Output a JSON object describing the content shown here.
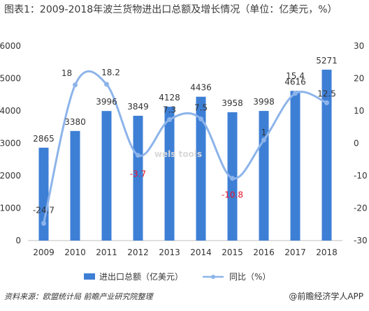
{
  "title": "图表1：2009-2018年波兰货物进出口总额及增长情况（单位：亿美元，%）",
  "footer": {
    "source": "资料来源：欧盟统计局 前瞻产业研究院整理",
    "brand": "@前瞻经济学人APP"
  },
  "colors": {
    "bar": "#3e7fd6",
    "line": "#8db4ea",
    "negative_label": "#e8142a",
    "text": "#333333"
  },
  "chart_data": {
    "type": "bar",
    "categories": [
      "2009",
      "2010",
      "2011",
      "2012",
      "2013",
      "2014",
      "2015",
      "2016",
      "2017",
      "2018"
    ],
    "series": [
      {
        "name": "进出口总额（亿美元）",
        "type": "bar",
        "axis": "left",
        "values": [
          2865,
          3380,
          3996,
          3849,
          4128,
          4436,
          3958,
          3998,
          4616,
          5271
        ]
      },
      {
        "name": "同比（%）",
        "type": "line",
        "axis": "right",
        "values": [
          -24.7,
          18,
          18.2,
          -3.7,
          7.3,
          7.5,
          -10.8,
          1,
          15.4,
          12.5
        ]
      }
    ],
    "y_left": {
      "min": 0,
      "max": 6000,
      "step": 1000,
      "ticks": [
        "0",
        "1000",
        "2000",
        "3000",
        "4000",
        "5000",
        "6000"
      ]
    },
    "y_right": {
      "min": -30,
      "max": 30,
      "step": 10,
      "ticks": [
        "-30",
        "-20",
        "-10",
        "0",
        "10",
        "20",
        "30"
      ]
    },
    "bar_labels": [
      "2865",
      "3380",
      "3996",
      "3849",
      "4128",
      "4436",
      "3958",
      "3998",
      "4616",
      "5271"
    ],
    "line_labels": [
      "-24.7",
      "18",
      "18.2",
      "-3.7",
      "7.3",
      "7.5",
      "-10.8",
      "1",
      "15.4",
      "12.5"
    ],
    "legend_position": "bottom",
    "watermark": "wels tools"
  }
}
